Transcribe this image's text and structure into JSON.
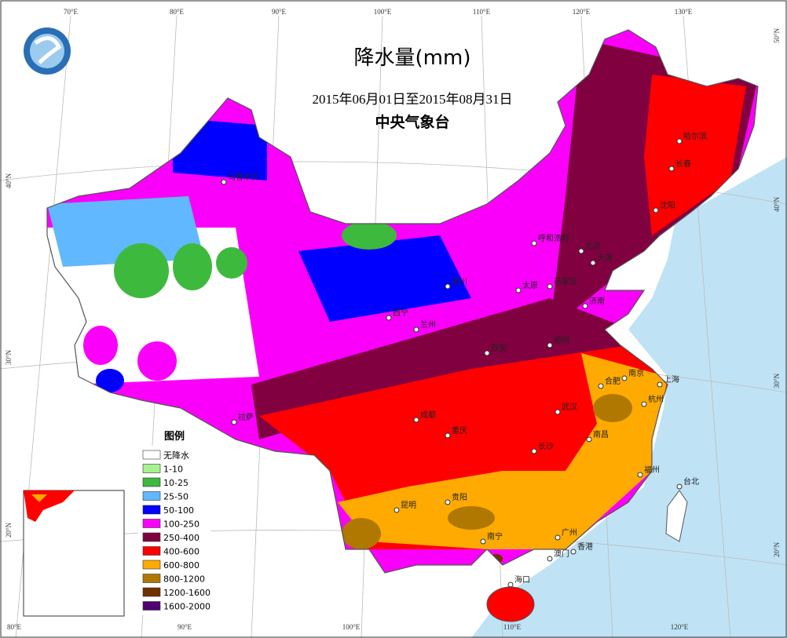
{
  "title": "降水量(mm)",
  "date_range": "2015年06月01日至2015年08月31日",
  "agency": "中央气象台",
  "legend": {
    "title": "图例",
    "items": [
      {
        "label": "无降水",
        "color": "#ffffff"
      },
      {
        "label": "1-10",
        "color": "#a6f28f"
      },
      {
        "label": "10-25",
        "color": "#3dba3d"
      },
      {
        "label": "25-50",
        "color": "#61b8ff"
      },
      {
        "label": "50-100",
        "color": "#0000ff"
      },
      {
        "label": "100-250",
        "color": "#fa00fa"
      },
      {
        "label": "250-400",
        "color": "#800040"
      },
      {
        "label": "400-600",
        "color": "#ff0000"
      },
      {
        "label": "600-800",
        "color": "#ffaa00"
      },
      {
        "label": "800-1200",
        "color": "#b07800"
      },
      {
        "label": "1200-1600",
        "color": "#6e3200"
      },
      {
        "label": "1600-2000",
        "color": "#500070"
      }
    ]
  },
  "lon_labels_top": [
    "70°E",
    "80°E",
    "90°E",
    "100°E",
    "110°E",
    "120°E",
    "130°E"
  ],
  "lon_labels_bottom": [
    "80°E",
    "90°E",
    "100°E",
    "110°E",
    "120°E"
  ],
  "lat_labels_left": [
    "40°N",
    "30°N",
    "20°N"
  ],
  "lat_labels_right": [
    "50°N",
    "40°N",
    "30°N",
    "20°N"
  ],
  "cities": [
    "乌鲁木齐",
    "哈尔滨",
    "长春",
    "沈阳",
    "呼和浩特",
    "北京",
    "天津",
    "银川",
    "太原",
    "石家庄",
    "济南",
    "西宁",
    "兰州",
    "西安",
    "郑州",
    "合肥",
    "南京",
    "上海",
    "杭州",
    "成都",
    "武汉",
    "重庆",
    "长沙",
    "南昌",
    "福州",
    "台北",
    "贵阳",
    "昆明",
    "拉萨",
    "广州",
    "南宁",
    "香港",
    "澳门",
    "海口"
  ]
}
